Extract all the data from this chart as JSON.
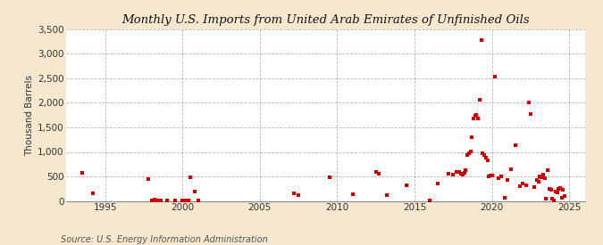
{
  "title": "Monthly U.S. Imports from United Arab Emirates of Unfinished Oils",
  "ylabel": "Thousand Barrels",
  "source": "Source: U.S. Energy Information Administration",
  "background_color": "#f5e8ce",
  "plot_background_color": "#ffffff",
  "marker_color": "#cc0000",
  "xlim": [
    1992.5,
    2026
  ],
  "ylim": [
    0,
    3500
  ],
  "yticks": [
    0,
    500,
    1000,
    1500,
    2000,
    2500,
    3000,
    3500
  ],
  "xticks": [
    1995,
    2000,
    2005,
    2010,
    2015,
    2020,
    2025
  ],
  "points": [
    [
      1993.5,
      580
    ],
    [
      1994.2,
      150
    ],
    [
      1997.8,
      440
    ],
    [
      1998.0,
      10
    ],
    [
      1998.1,
      15
    ],
    [
      1998.2,
      20
    ],
    [
      1998.4,
      10
    ],
    [
      1998.6,
      8
    ],
    [
      1999.0,
      5
    ],
    [
      1999.5,
      10
    ],
    [
      2000.0,
      10
    ],
    [
      2000.1,
      15
    ],
    [
      2000.2,
      12
    ],
    [
      2000.3,
      18
    ],
    [
      2000.4,
      12
    ],
    [
      2000.5,
      480
    ],
    [
      2000.8,
      200
    ],
    [
      2001.0,
      10
    ],
    [
      2007.2,
      150
    ],
    [
      2007.5,
      120
    ],
    [
      2009.5,
      480
    ],
    [
      2011.0,
      130
    ],
    [
      2012.5,
      600
    ],
    [
      2012.7,
      560
    ],
    [
      2013.2,
      110
    ],
    [
      2014.5,
      320
    ],
    [
      2016.0,
      10
    ],
    [
      2016.5,
      350
    ],
    [
      2017.2,
      550
    ],
    [
      2017.5,
      530
    ],
    [
      2017.7,
      600
    ],
    [
      2017.9,
      590
    ],
    [
      2018.0,
      560
    ],
    [
      2018.1,
      540
    ],
    [
      2018.2,
      570
    ],
    [
      2018.3,
      620
    ],
    [
      2018.4,
      940
    ],
    [
      2018.5,
      970
    ],
    [
      2018.6,
      1010
    ],
    [
      2018.7,
      1300
    ],
    [
      2018.8,
      1680
    ],
    [
      2018.9,
      1730
    ],
    [
      2019.0,
      1760
    ],
    [
      2019.1,
      1680
    ],
    [
      2019.2,
      2070
    ],
    [
      2019.3,
      3280
    ],
    [
      2019.4,
      980
    ],
    [
      2019.5,
      930
    ],
    [
      2019.6,
      880
    ],
    [
      2019.7,
      820
    ],
    [
      2019.8,
      500
    ],
    [
      2019.9,
      510
    ],
    [
      2020.0,
      520
    ],
    [
      2020.2,
      2540
    ],
    [
      2020.4,
      470
    ],
    [
      2020.6,
      500
    ],
    [
      2020.8,
      60
    ],
    [
      2021.0,
      430
    ],
    [
      2021.2,
      650
    ],
    [
      2021.5,
      1130
    ],
    [
      2021.8,
      300
    ],
    [
      2022.0,
      350
    ],
    [
      2022.2,
      320
    ],
    [
      2022.4,
      2000
    ],
    [
      2022.5,
      1780
    ],
    [
      2022.7,
      280
    ],
    [
      2022.9,
      420
    ],
    [
      2023.0,
      400
    ],
    [
      2023.1,
      500
    ],
    [
      2023.2,
      480
    ],
    [
      2023.3,
      540
    ],
    [
      2023.4,
      460
    ],
    [
      2023.5,
      50
    ],
    [
      2023.6,
      620
    ],
    [
      2023.7,
      250
    ],
    [
      2023.8,
      220
    ],
    [
      2023.9,
      50
    ],
    [
      2024.0,
      10
    ],
    [
      2024.1,
      200
    ],
    [
      2024.2,
      180
    ],
    [
      2024.3,
      240
    ],
    [
      2024.4,
      260
    ],
    [
      2024.5,
      70
    ],
    [
      2024.6,
      230
    ],
    [
      2024.7,
      100
    ]
  ]
}
